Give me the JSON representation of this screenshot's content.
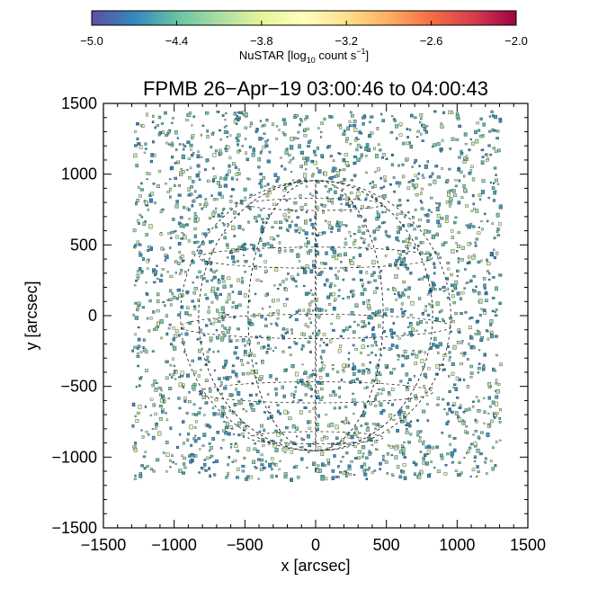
{
  "colorbar": {
    "label_main": "NuSTAR [log",
    "label_sub": "10",
    "label_mid": " count s",
    "label_sup": "−1",
    "label_end": "]",
    "ticks": [
      "−5.0",
      "−4.4",
      "−3.8",
      "−3.2",
      "−2.6",
      "−2.0"
    ],
    "tick_values": [
      -5.0,
      -4.4,
      -3.8,
      -3.2,
      -2.6,
      -2.0
    ],
    "range": [
      -5.0,
      -2.0
    ],
    "colormap": [
      "#5e4fa2",
      "#3288bd",
      "#66c2a5",
      "#abdda4",
      "#e6f598",
      "#ffffbf",
      "#fee08b",
      "#fdae61",
      "#f46d43",
      "#d53e4f",
      "#9e0142"
    ]
  },
  "chart_data": {
    "type": "heatmap",
    "title": "FPMB 26−Apr−19 03:00:46 to 04:00:43",
    "xlabel": "x [arcsec]",
    "ylabel": "y [arcsec]",
    "xlim": [
      -1500,
      1500
    ],
    "ylim": [
      -1500,
      1500
    ],
    "xticks": [
      -1500,
      -1000,
      -500,
      0,
      500,
      1000,
      1500
    ],
    "yticks": [
      -1500,
      -1000,
      -500,
      0,
      500,
      1000,
      1500
    ],
    "xtick_labels": [
      "−1500",
      "−1000",
      "−500",
      "0",
      "500",
      "1000",
      "1500"
    ],
    "ytick_labels": [
      "−1500",
      "−1000",
      "−500",
      "0",
      "500",
      "1000",
      "1500"
    ],
    "data_extent": {
      "x": [
        -1300,
        1300
      ],
      "y": [
        -1150,
        1450
      ]
    },
    "value_range_log10": [
      -4.7,
      -3.6
    ],
    "solar_limb_radius_arcsec": 955,
    "grid": true,
    "grid_style": "dashed heliographic lines",
    "description_points": [
      {
        "x": -1250,
        "y": 1300,
        "v": -4.2
      },
      {
        "x": 0,
        "y": 0,
        "v": -3.9
      },
      {
        "x": 1250,
        "y": -1000,
        "v": -4.3
      }
    ]
  }
}
